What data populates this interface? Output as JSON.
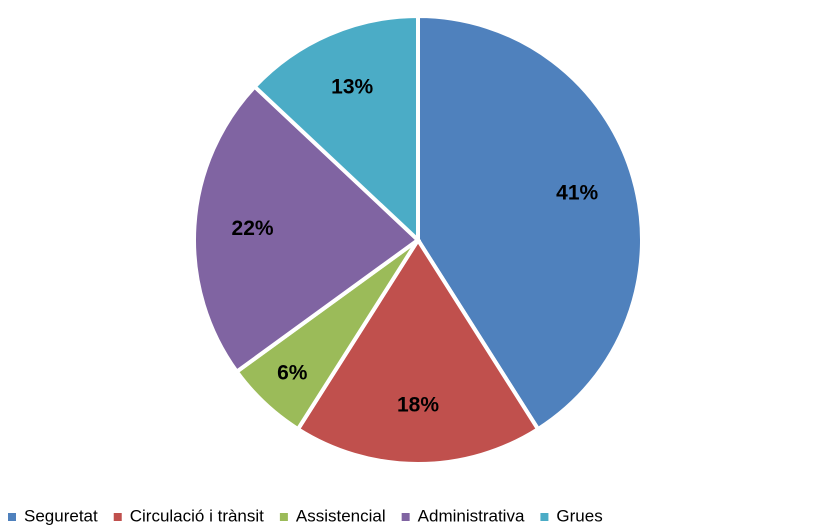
{
  "chart_data": {
    "type": "pie",
    "categories": [
      "Seguretat",
      "Circulació i trànsit",
      "Assistencial",
      "Administrativa",
      "Grues"
    ],
    "values": [
      41,
      18,
      6,
      22,
      13
    ],
    "value_labels": [
      "41%",
      "18%",
      "6%",
      "22%",
      "13%"
    ],
    "colors": [
      "#4f81bd",
      "#c0504d",
      "#9bbb59",
      "#8064a2",
      "#4bacc6"
    ],
    "legend": "bottom"
  }
}
